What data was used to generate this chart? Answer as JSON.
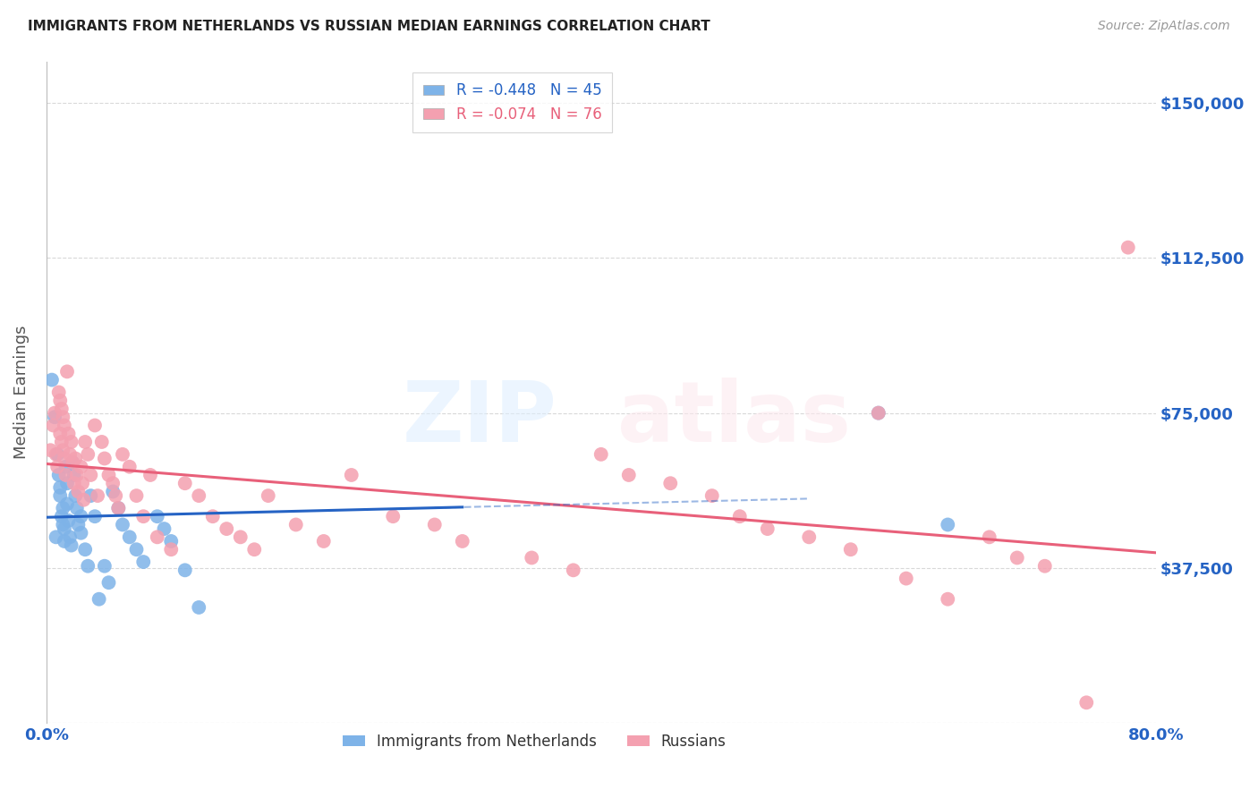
{
  "title": "IMMIGRANTS FROM NETHERLANDS VS RUSSIAN MEDIAN EARNINGS CORRELATION CHART",
  "source": "Source: ZipAtlas.com",
  "ylabel": "Median Earnings",
  "xlim": [
    0.0,
    0.8
  ],
  "ylim": [
    0,
    160000
  ],
  "yticks": [
    0,
    37500,
    75000,
    112500,
    150000
  ],
  "ytick_labels": [
    "",
    "$37,500",
    "$75,000",
    "$112,500",
    "$150,000"
  ],
  "xticks": [
    0.0,
    0.1,
    0.2,
    0.3,
    0.4,
    0.5,
    0.6,
    0.7,
    0.8
  ],
  "xtick_labels": [
    "0.0%",
    "",
    "",
    "",
    "",
    "",
    "",
    "",
    "80.0%"
  ],
  "netherlands_R": -0.448,
  "netherlands_N": 45,
  "russian_R": -0.074,
  "russian_N": 76,
  "netherlands_color": "#7EB3E8",
  "russian_color": "#F4A0B0",
  "netherlands_trend_color": "#2563C4",
  "russian_trend_color": "#E8607A",
  "legend_label_netherlands": "Immigrants from Netherlands",
  "legend_label_russian": "Russians",
  "background_color": "#ffffff",
  "grid_color": "#d0d0d0",
  "title_color": "#222222",
  "ylabel_color": "#555555",
  "ytick_label_color": "#2563C4",
  "xtick_label_color": "#2563C4",
  "netherlands_x": [
    0.004,
    0.006,
    0.007,
    0.008,
    0.009,
    0.01,
    0.01,
    0.011,
    0.012,
    0.012,
    0.013,
    0.013,
    0.014,
    0.015,
    0.015,
    0.016,
    0.017,
    0.018,
    0.019,
    0.02,
    0.021,
    0.022,
    0.023,
    0.025,
    0.025,
    0.028,
    0.03,
    0.032,
    0.035,
    0.038,
    0.042,
    0.045,
    0.048,
    0.052,
    0.055,
    0.06,
    0.065,
    0.07,
    0.08,
    0.085,
    0.09,
    0.1,
    0.11,
    0.6,
    0.65
  ],
  "netherlands_y": [
    83000,
    74000,
    45000,
    65000,
    60000,
    57000,
    55000,
    50000,
    48000,
    52000,
    47000,
    44000,
    62000,
    58000,
    53000,
    49000,
    45000,
    43000,
    63000,
    60000,
    55000,
    52000,
    48000,
    50000,
    46000,
    42000,
    38000,
    55000,
    50000,
    30000,
    38000,
    34000,
    56000,
    52000,
    48000,
    45000,
    42000,
    39000,
    50000,
    47000,
    44000,
    37000,
    28000,
    75000,
    48000
  ],
  "russian_x": [
    0.003,
    0.005,
    0.006,
    0.007,
    0.008,
    0.009,
    0.01,
    0.01,
    0.011,
    0.011,
    0.012,
    0.012,
    0.013,
    0.013,
    0.014,
    0.015,
    0.016,
    0.017,
    0.018,
    0.019,
    0.02,
    0.021,
    0.022,
    0.023,
    0.025,
    0.026,
    0.027,
    0.028,
    0.03,
    0.032,
    0.035,
    0.037,
    0.04,
    0.042,
    0.045,
    0.048,
    0.05,
    0.052,
    0.055,
    0.06,
    0.065,
    0.07,
    0.075,
    0.08,
    0.09,
    0.1,
    0.11,
    0.12,
    0.13,
    0.14,
    0.15,
    0.16,
    0.18,
    0.2,
    0.22,
    0.25,
    0.28,
    0.3,
    0.35,
    0.38,
    0.4,
    0.42,
    0.45,
    0.48,
    0.5,
    0.52,
    0.55,
    0.58,
    0.6,
    0.62,
    0.65,
    0.68,
    0.7,
    0.72,
    0.75,
    0.78
  ],
  "russian_y": [
    66000,
    72000,
    75000,
    65000,
    62000,
    80000,
    78000,
    70000,
    76000,
    68000,
    74000,
    66000,
    72000,
    64000,
    60000,
    85000,
    70000,
    65000,
    68000,
    63000,
    58000,
    64000,
    60000,
    56000,
    62000,
    58000,
    54000,
    68000,
    65000,
    60000,
    72000,
    55000,
    68000,
    64000,
    60000,
    58000,
    55000,
    52000,
    65000,
    62000,
    55000,
    50000,
    60000,
    45000,
    42000,
    58000,
    55000,
    50000,
    47000,
    45000,
    42000,
    55000,
    48000,
    44000,
    60000,
    50000,
    48000,
    44000,
    40000,
    37000,
    65000,
    60000,
    58000,
    55000,
    50000,
    47000,
    45000,
    42000,
    75000,
    35000,
    30000,
    45000,
    40000,
    38000,
    5000,
    115000
  ]
}
